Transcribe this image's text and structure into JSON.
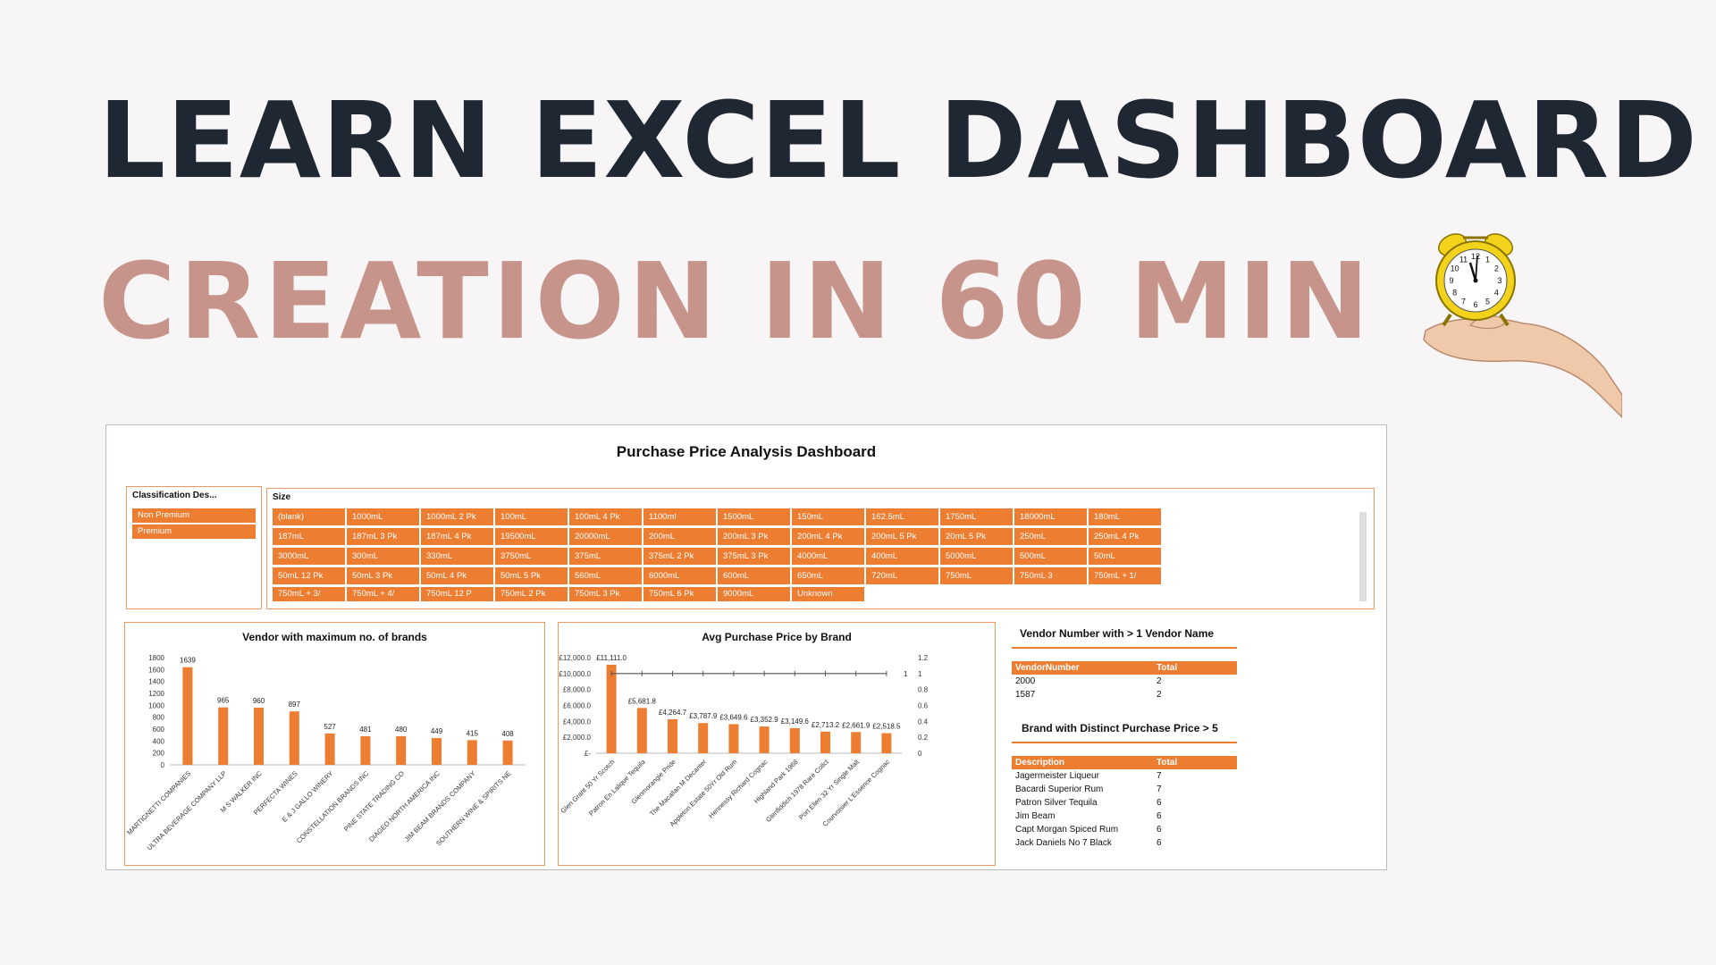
{
  "headline": {
    "line1": "LEARN EXCEL DASHBOARD",
    "line2": "CREATION IN 60 MIN"
  },
  "clock": {
    "numbers": [
      "12",
      "1",
      "2",
      "3",
      "4",
      "5",
      "6",
      "7",
      "8",
      "9",
      "10",
      "11"
    ]
  },
  "dashboard": {
    "title": "Purchase Price Analysis Dashboard",
    "classification_slicer": {
      "header": "Classification Des...",
      "items": [
        "Non Premium",
        "Premium"
      ]
    },
    "size_slicer": {
      "header": "Size",
      "items": [
        "(blank)",
        "1000mL",
        "1000mL 2 Pk",
        "100mL",
        "100mL 4 Pk",
        "1100ml",
        "1500mL",
        "150mL",
        "162.5mL",
        "1750mL",
        "18000mL",
        "180mL",
        "187mL",
        "187mL 3 Pk",
        "187mL 4 Pk",
        "19500mL",
        "20000mL",
        "200mL",
        "200mL 3 Pk",
        "200mL 4 Pk",
        "200mL 5 Pk",
        "20mL 5 Pk",
        "250mL",
        "250mL 4 Pk",
        "3000mL",
        "300mL",
        "330mL",
        "3750mL",
        "375mL",
        "375mL 2 Pk",
        "375mL 3 Pk",
        "4000mL",
        "400mL",
        "5000mL",
        "500mL",
        "50mL",
        "50mL 12 Pk",
        "50mL 3 Pk",
        "50mL 4 Pk",
        "50mL 5 Pk",
        "560mL",
        "6000mL",
        "600mL",
        "650mL",
        "720mL",
        "750mL",
        "750mL  3",
        "750mL + 1/",
        "750mL + 3/",
        "750mL + 4/",
        "750mL 12 P",
        "750mL 2 Pk",
        "750mL 3 Pk",
        "750mL 6 Pk",
        "9000mL",
        "Unknown"
      ]
    },
    "vendor_table": {
      "title": "Vendor Number with > 1 Vendor Name",
      "headers": [
        "VendorNumber",
        "Total"
      ],
      "rows": [
        [
          "2000",
          "2"
        ],
        [
          "1587",
          "2"
        ]
      ]
    },
    "brand_table": {
      "title": "Brand with Distinct Purchase Price  > 5",
      "headers": [
        "Description",
        "Total"
      ],
      "rows": [
        [
          "Jagermeister Liqueur",
          "7"
        ],
        [
          "Bacardi Superior Rum",
          "7"
        ],
        [
          "Patron Silver Tequila",
          "6"
        ],
        [
          "Jim Beam",
          "6"
        ],
        [
          "Capt Morgan Spiced Rum",
          "6"
        ],
        [
          "Jack Daniels No 7 Black",
          "6"
        ]
      ]
    },
    "colors": {
      "accent": "#ed7d31",
      "border": "#ee9a62"
    }
  },
  "chart_data": [
    {
      "type": "bar",
      "title": "Vendor with maximum no. of brands",
      "categories": [
        "MARTIGNETTI COMPANIES",
        "ULTRA BEVERAGE COMPANY LLP",
        "M S WALKER INC",
        "PERFECTA WINES",
        "E & J GALLO WINERY",
        "CONSTELLATION BRANDS INC",
        "PINE STATE TRADING CO",
        "DIAGEO NORTH AMERICA INC",
        "JIM BEAM BRANDS COMPANY",
        "SOUTHERN WINE & SPIRITS NE"
      ],
      "values": [
        1639,
        965,
        960,
        897,
        527,
        481,
        480,
        449,
        415,
        408
      ],
      "yticks": [
        "0",
        "200",
        "400",
        "600",
        "800",
        "1000",
        "1200",
        "1400",
        "1600",
        "1800"
      ],
      "ylim": [
        0,
        1800
      ],
      "color": "#ed7d31"
    },
    {
      "type": "bar",
      "title": "Avg Purchase Price by Brand",
      "categories": [
        "Glen Grant 50 Yr Scotch",
        "Patron En Lalique Tequila",
        "Glenmorangie Pride",
        "The Macallan M Decanter",
        "Appleton Estate 50Yr Old Rum",
        "Hennessy Richard Cognac",
        "Highland Park 1968",
        "Glenfiddich 1978 Rare Collct",
        "Port Ellen 32 Yr Single Malt",
        "Courvoisier L'Essence Cognac"
      ],
      "values": [
        11111.0,
        5681.8,
        4264.7,
        3787.9,
        3649.6,
        3352.9,
        3149.6,
        2713.2,
        2661.9,
        2518.5
      ],
      "data_labels": [
        "£11,111.0",
        "£5,681.8",
        "£4,264.7",
        "£3,787.9",
        "£3,649.6",
        "£3,352.9",
        "£3,149.6",
        "£2,713.2",
        "£2,661.9",
        "£2,518.5"
      ],
      "yticks": [
        "£-",
        "£2,000.0",
        "£4,000.0",
        "£6,000.0",
        "£8,000.0",
        "£10,000.0",
        "£12,000.0"
      ],
      "ylim": [
        0,
        12000
      ],
      "secondary_yticks": [
        "0",
        "0.2",
        "0.4",
        "0.6",
        "0.8",
        "1",
        "1.2"
      ],
      "secondary_ylim": [
        0,
        1.2
      ],
      "line_series": {
        "values": [
          1,
          1,
          1,
          1,
          1,
          1,
          1,
          1,
          1,
          1
        ],
        "end_label": "1"
      },
      "color": "#ed7d31"
    }
  ]
}
